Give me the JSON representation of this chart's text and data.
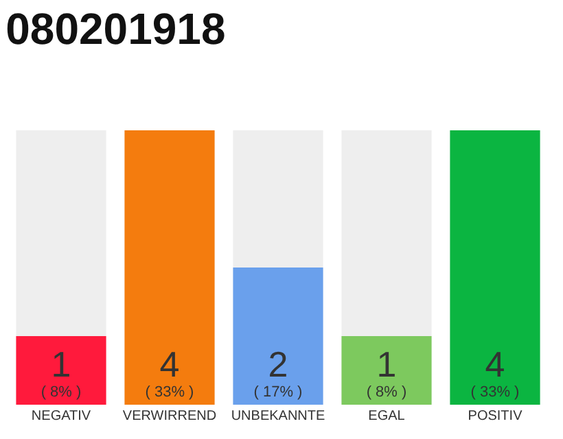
{
  "chart_data": {
    "type": "bar",
    "title": "080201918",
    "categories": [
      "NEGATIV",
      "VERWIRREND",
      "UNBEKANNTE",
      "EGAL",
      "POSITIV"
    ],
    "values": [
      1,
      4,
      2,
      1,
      4
    ],
    "colors": [
      "#ff1a3c",
      "#f47c0e",
      "#6aa0ec",
      "#7dc95e",
      "#0bb541"
    ],
    "value_labels": [
      "1\n( 8% )",
      "4\n( 33% )",
      "2\n( 17% )",
      "1\n( 8% )",
      "4\n( 33% )"
    ],
    "grid": false,
    "legend": false
  }
}
